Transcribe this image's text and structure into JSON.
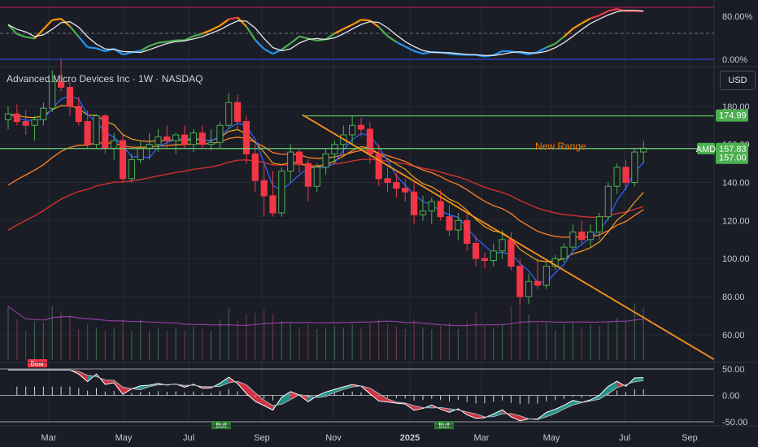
{
  "title": "Advanced Micro Devices Inc · 1W · NASDAQ",
  "currency": "USD",
  "annotation": {
    "text": "New Range",
    "color": "#f57c00"
  },
  "colors": {
    "up": "#4caf50",
    "down": "#f23645",
    "sma_fast": "#2962ff",
    "ema_mid": "#f7a21b",
    "ema_slow": "#ff7f27",
    "sma_200": "#d32f2f",
    "trendline": "#f7931a",
    "level": "#66d36e"
  },
  "chart_data": {
    "type": "candlestick",
    "symbol": "AMD",
    "interval": "1W",
    "ylim": [
      45,
      200
    ],
    "y_ticks": [
      "180.00",
      "160.00",
      "140.00",
      "120.00",
      "100.00",
      "80.00",
      "60.00"
    ],
    "x_ticks": [
      "Mar",
      "May",
      "Jul",
      "Sep",
      "Nov",
      "2025",
      "Mar",
      "May",
      "Jul",
      "Sep"
    ],
    "price_tags": [
      {
        "label": "174.99",
        "value": 174.99,
        "color": "#4caf50"
      },
      {
        "label": "AMD",
        "value": 157.83,
        "color": "#4caf50"
      },
      {
        "label": "157.83",
        "value": 157.83,
        "color": "#4caf50"
      },
      {
        "label": "157.00",
        "value": 157.0,
        "color": "#4caf50"
      }
    ],
    "levels": [
      {
        "name": "range-top",
        "value": 174.99
      },
      {
        "name": "range-bottom",
        "value": 157.83
      }
    ],
    "ohlc": [
      [
        173,
        180,
        168,
        176
      ],
      [
        176,
        181,
        170,
        172
      ],
      [
        172,
        178,
        165,
        170
      ],
      [
        170,
        175,
        162,
        173
      ],
      [
        173,
        182,
        170,
        179
      ],
      [
        179,
        199,
        177,
        193
      ],
      [
        193,
        205,
        188,
        190
      ],
      [
        190,
        193,
        175,
        180
      ],
      [
        180,
        185,
        170,
        172
      ],
      [
        172,
        178,
        158,
        160
      ],
      [
        160,
        176,
        158,
        175
      ],
      [
        175,
        176,
        155,
        158
      ],
      [
        158,
        166,
        152,
        162
      ],
      [
        162,
        165,
        140,
        142
      ],
      [
        142,
        155,
        140,
        152
      ],
      [
        152,
        162,
        150,
        158
      ],
      [
        158,
        166,
        152,
        160
      ],
      [
        160,
        168,
        156,
        164
      ],
      [
        164,
        170,
        158,
        162
      ],
      [
        162,
        166,
        155,
        165
      ],
      [
        165,
        170,
        158,
        160
      ],
      [
        160,
        168,
        156,
        166
      ],
      [
        166,
        170,
        158,
        160
      ],
      [
        160,
        168,
        157,
        161
      ],
      [
        161,
        172,
        158,
        170
      ],
      [
        170,
        187,
        168,
        182
      ],
      [
        182,
        186,
        168,
        172
      ],
      [
        172,
        175,
        150,
        155
      ],
      [
        155,
        160,
        135,
        141
      ],
      [
        141,
        150,
        122,
        133
      ],
      [
        133,
        146,
        122,
        124
      ],
      [
        124,
        148,
        122,
        146
      ],
      [
        146,
        160,
        140,
        156
      ],
      [
        156,
        158,
        145,
        150
      ],
      [
        150,
        152,
        130,
        138
      ],
      [
        138,
        150,
        135,
        148
      ],
      [
        148,
        158,
        144,
        155
      ],
      [
        155,
        162,
        150,
        160
      ],
      [
        160,
        170,
        155,
        165
      ],
      [
        165,
        175,
        160,
        170
      ],
      [
        170,
        174,
        164,
        168
      ],
      [
        168,
        172,
        150,
        155
      ],
      [
        155,
        160,
        138,
        142
      ],
      [
        142,
        148,
        135,
        140
      ],
      [
        140,
        145,
        132,
        137
      ],
      [
        137,
        142,
        130,
        135
      ],
      [
        135,
        140,
        118,
        123
      ],
      [
        123,
        133,
        120,
        125
      ],
      [
        125,
        132,
        118,
        130
      ],
      [
        130,
        136,
        120,
        122
      ],
      [
        122,
        128,
        112,
        115
      ],
      [
        115,
        124,
        110,
        120
      ],
      [
        120,
        124,
        104,
        108
      ],
      [
        108,
        112,
        96,
        100
      ],
      [
        100,
        103,
        95,
        99
      ],
      [
        99,
        108,
        96,
        104
      ],
      [
        104,
        115,
        100,
        110
      ],
      [
        110,
        114,
        94,
        96
      ],
      [
        96,
        100,
        76,
        80
      ],
      [
        80,
        92,
        76,
        88
      ],
      [
        88,
        100,
        84,
        86
      ],
      [
        86,
        98,
        84,
        96
      ],
      [
        96,
        102,
        94,
        100
      ],
      [
        100,
        108,
        98,
        106
      ],
      [
        106,
        118,
        104,
        114
      ],
      [
        114,
        120,
        108,
        110
      ],
      [
        110,
        118,
        106,
        114
      ],
      [
        114,
        124,
        110,
        122
      ],
      [
        122,
        140,
        120,
        138
      ],
      [
        138,
        150,
        134,
        148
      ],
      [
        148,
        152,
        136,
        140
      ],
      [
        140,
        158,
        138,
        156
      ],
      [
        156,
        162,
        150,
        158
      ]
    ],
    "volume": [
      66,
      50,
      36,
      48,
      46,
      66,
      60,
      56,
      38,
      44,
      40,
      36,
      40,
      48,
      36,
      50,
      36,
      40,
      36,
      40,
      36,
      42,
      38,
      36,
      50,
      64,
      48,
      56,
      58,
      62,
      56,
      48,
      46,
      40,
      44,
      38,
      40,
      42,
      40,
      44,
      40,
      46,
      50,
      44,
      42,
      38,
      50,
      40,
      38,
      42,
      46,
      38,
      48,
      58,
      42,
      40,
      44,
      66,
      74,
      56,
      44,
      46,
      36,
      44,
      46,
      40,
      44,
      42,
      46,
      52,
      48,
      70,
      64
    ],
    "indicator_scale": {
      "ticks": [
        "80.00%",
        "0.00%"
      ]
    },
    "oscillator_scale": {
      "ticks": [
        "50.00",
        "0.00",
        "-50.00"
      ]
    },
    "signals": [
      {
        "label": "Bear",
        "position": "top"
      },
      {
        "label": "Bull",
        "position": "bottom"
      },
      {
        "label": "Bull",
        "position": "bottom"
      }
    ]
  }
}
